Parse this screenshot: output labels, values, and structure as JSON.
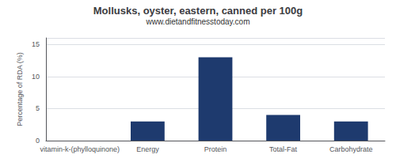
{
  "chart_data": {
    "type": "bar",
    "title": "Mollusks, oyster, eastern, canned per 100g",
    "subtitle": "www.dietandfitnesstoday.com",
    "ylabel": "Percentage of RDA (%)",
    "categories": [
      "vitamin-k-(phylloquinone)",
      "Energy",
      "Protein",
      "Total-Fat",
      "Carbohydrate"
    ],
    "values": [
      0,
      3,
      13,
      4,
      3
    ],
    "color": "#1e3a6e",
    "ylim": [
      0,
      16
    ],
    "yticks": [
      0,
      5,
      10,
      15
    ],
    "grid": true
  }
}
